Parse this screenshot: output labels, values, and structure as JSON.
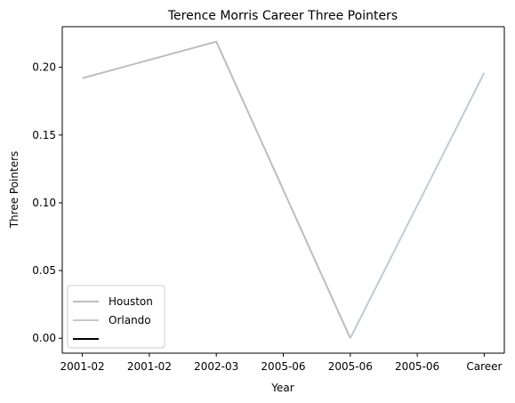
{
  "chart_data": {
    "type": "line",
    "title": "Terence Morris Career Three Pointers",
    "xlabel": "Year",
    "ylabel": "Three Pointers",
    "categories": [
      "2001-02",
      "2001-02",
      "2002-03",
      "2005-06",
      "2005-06",
      "2005-06",
      "Career"
    ],
    "series": [
      {
        "name": "Houston",
        "color": "#bdbdbd",
        "points": [
          {
            "x": 0,
            "y": 0.192
          },
          {
            "x": 2,
            "y": 0.219
          },
          {
            "x": 4,
            "y": 0.0
          }
        ]
      },
      {
        "name": "Orlando",
        "color": "#c2c9cf",
        "points": [
          {
            "x": 4,
            "y": 0.0
          },
          {
            "x": 6,
            "y": 0.196
          }
        ]
      },
      {
        "name": "",
        "color": "#000000",
        "points": []
      }
    ],
    "yticks": [
      0.0,
      0.05,
      0.1,
      0.15,
      0.2
    ],
    "ytick_labels": [
      "0.00",
      "0.05",
      "0.10",
      "0.15",
      "0.20"
    ],
    "ylim": [
      -0.011,
      0.23
    ],
    "xlim": [
      -0.3,
      6.3
    ],
    "grid": false,
    "legend_position": "lower-left"
  }
}
